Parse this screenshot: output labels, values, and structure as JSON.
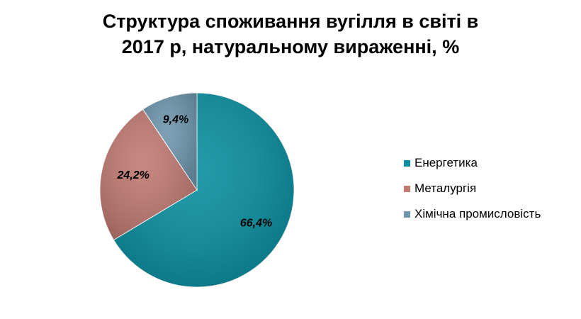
{
  "chart_data": {
    "type": "pie",
    "title_lines": [
      "Структура споживання вугілля в світі в",
      "2017 р, натуральному вираженні, %"
    ],
    "legend_position": "right",
    "slices": [
      {
        "name": "Енергетика",
        "value": 66.4,
        "label": "66,4%",
        "color": "#0a8fa0"
      },
      {
        "name": "Металургія",
        "value": 24.2,
        "label": "24,2%",
        "color": "#c07a72"
      },
      {
        "name": "Хімічна промисловість",
        "value": 9.4,
        "label": "9,4%",
        "color": "#6f96ad"
      }
    ]
  }
}
